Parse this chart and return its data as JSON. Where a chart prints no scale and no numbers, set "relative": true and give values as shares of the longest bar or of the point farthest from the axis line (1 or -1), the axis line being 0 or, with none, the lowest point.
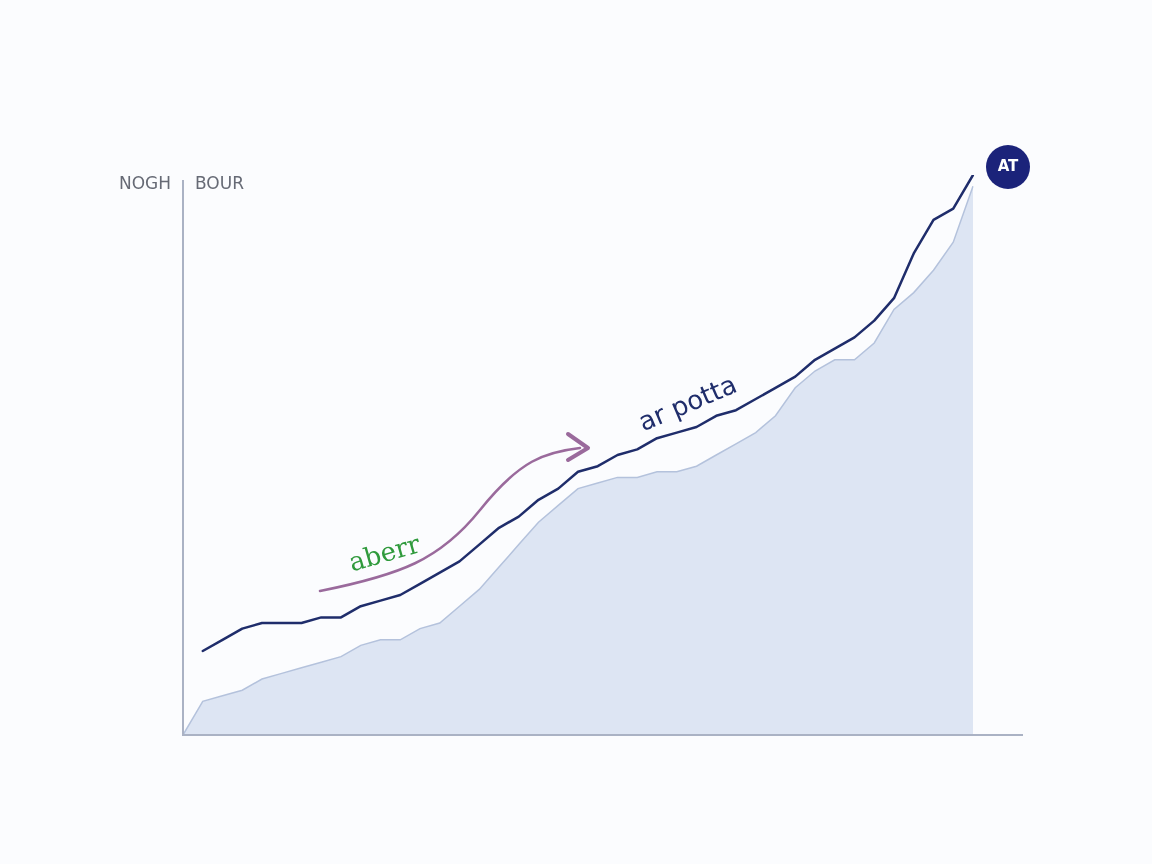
{
  "chart_data": {
    "type": "area",
    "relative": true,
    "ylabel": "NOGH",
    "annotations": [
      "BOUR",
      "aberr",
      "AT"
    ],
    "categories": [
      null,
      null,
      null,
      null,
      null,
      null,
      null,
      null,
      null,
      null,
      null,
      null,
      null,
      null,
      null,
      null,
      null,
      null,
      null,
      null,
      null,
      null,
      null,
      null,
      null,
      null,
      null,
      null,
      null,
      null,
      null,
      null,
      null,
      null,
      null,
      null,
      null,
      null,
      null,
      null,
      null
    ],
    "series": [
      {
        "color": "#dde5f3",
        "values": [
          0,
          0.06,
          0.07,
          0.08,
          0.1,
          0.11,
          0.12,
          0.13,
          0.14,
          0.16,
          0.17,
          0.17,
          0.19,
          0.2,
          0.23,
          0.26,
          0.3,
          0.34,
          0.38,
          0.41,
          0.44,
          0.45,
          0.46,
          0.46,
          0.47,
          0.47,
          0.48,
          0.5,
          0.52,
          0.54,
          0.57,
          0.62,
          0.65,
          0.67,
          0.67,
          0.7,
          0.76,
          0.79,
          0.83,
          0.88,
          0.98
        ]
      },
      {
        "type": "line",
        "name": "ar potta",
        "color": "#1f2d6b",
        "values": [
          null,
          0.15,
          0.17,
          0.19,
          0.2,
          0.2,
          0.2,
          0.21,
          0.21,
          0.23,
          0.24,
          0.25,
          0.27,
          0.29,
          0.31,
          0.34,
          0.37,
          0.39,
          0.42,
          0.44,
          0.47,
          0.48,
          0.5,
          0.51,
          0.53,
          0.54,
          0.55,
          0.57,
          0.58,
          0.6,
          0.62,
          0.64,
          0.67,
          0.69,
          0.71,
          0.74,
          0.78,
          0.86,
          0.92,
          0.94,
          1
        ]
      }
    ]
  }
}
